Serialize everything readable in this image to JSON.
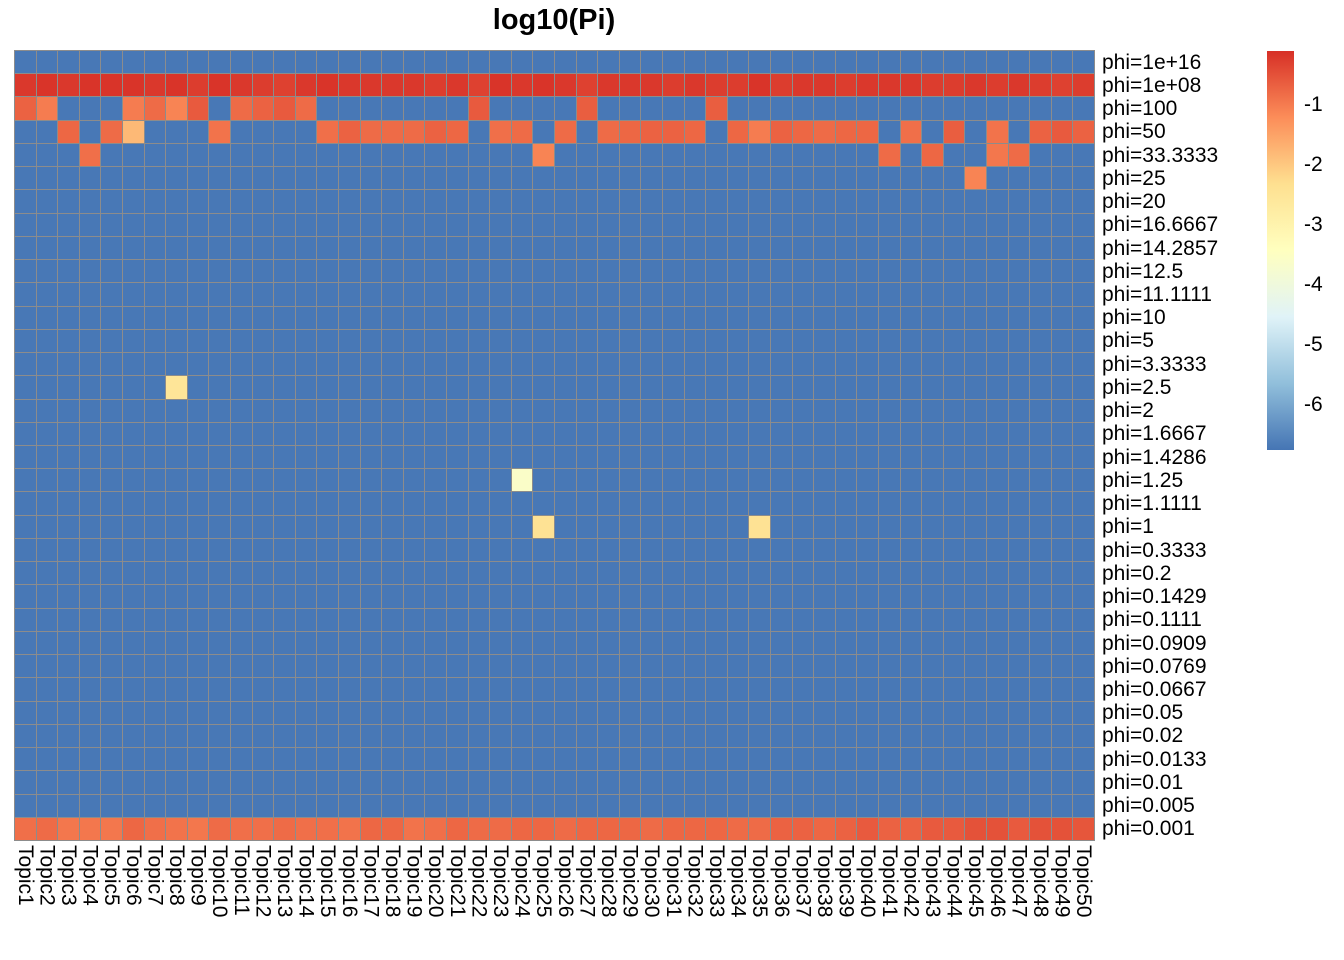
{
  "chart_data": {
    "type": "heatmap",
    "title": "log10(Pi)",
    "rows": [
      "phi=1e+16",
      "phi=1e+08",
      "phi=100",
      "phi=50",
      "phi=33.3333",
      "phi=25",
      "phi=20",
      "phi=16.6667",
      "phi=14.2857",
      "phi=12.5",
      "phi=11.1111",
      "phi=10",
      "phi=5",
      "phi=3.3333",
      "phi=2.5",
      "phi=2",
      "phi=1.6667",
      "phi=1.4286",
      "phi=1.25",
      "phi=1.1111",
      "phi=1",
      "phi=0.3333",
      "phi=0.2",
      "phi=0.1429",
      "phi=0.1111",
      "phi=0.0909",
      "phi=0.0769",
      "phi=0.0667",
      "phi=0.05",
      "phi=0.02",
      "phi=0.0133",
      "phi=0.01",
      "phi=0.005",
      "phi=0.001"
    ],
    "columns": [
      "Topic1",
      "Topic2",
      "Topic3",
      "Topic4",
      "Topic5",
      "Topic6",
      "Topic7",
      "Topic8",
      "Topic9",
      "Topic10",
      "Topic11",
      "Topic12",
      "Topic13",
      "Topic14",
      "Topic15",
      "Topic16",
      "Topic17",
      "Topic18",
      "Topic19",
      "Topic20",
      "Topic21",
      "Topic22",
      "Topic23",
      "Topic24",
      "Topic25",
      "Topic26",
      "Topic27",
      "Topic28",
      "Topic29",
      "Topic30",
      "Topic31",
      "Topic32",
      "Topic33",
      "Topic34",
      "Topic35",
      "Topic36",
      "Topic37",
      "Topic38",
      "Topic39",
      "Topic40",
      "Topic41",
      "Topic42",
      "Topic43",
      "Topic44",
      "Topic45",
      "Topic46",
      "Topic47",
      "Topic48",
      "Topic49",
      "Topic50"
    ],
    "baseline_value": -6.7,
    "full_rows": {
      "phi=1e+08": [
        -0.2,
        -0.15,
        -0.2,
        -0.15,
        -0.15,
        -0.15,
        -0.2,
        -0.15,
        -0.25,
        -0.15,
        -0.2,
        -0.25,
        -0.3,
        -0.2,
        -0.15,
        -0.2,
        -0.2,
        -0.2,
        -0.2,
        -0.25,
        -0.2,
        -0.3,
        -0.15,
        -0.2,
        -0.15,
        -0.2,
        -0.3,
        -0.2,
        -0.2,
        -0.2,
        -0.25,
        -0.2,
        -0.25,
        -0.25,
        -0.15,
        -0.25,
        -0.2,
        -0.2,
        -0.25,
        -0.2,
        -0.2,
        -0.2,
        -0.25,
        -0.25,
        -0.2,
        -0.25,
        -0.2,
        -0.25,
        -0.3,
        -0.25
      ],
      "phi=0.001": [
        -0.85,
        -0.8,
        -0.95,
        -0.95,
        -0.95,
        -0.75,
        -0.85,
        -0.9,
        -0.95,
        -0.8,
        -0.85,
        -0.85,
        -0.8,
        -0.85,
        -0.85,
        -0.9,
        -0.75,
        -0.75,
        -0.9,
        -0.85,
        -0.75,
        -0.8,
        -0.8,
        -0.75,
        -0.75,
        -0.8,
        -0.75,
        -0.75,
        -0.75,
        -0.8,
        -0.75,
        -0.75,
        -0.75,
        -0.8,
        -0.8,
        -0.7,
        -0.7,
        -0.75,
        -0.7,
        -0.6,
        -0.7,
        -0.7,
        -0.6,
        -0.6,
        -0.5,
        -0.5,
        -0.6,
        -0.5,
        -0.5,
        -0.55
      ]
    },
    "cells": [
      [
        "phi=100",
        "Topic1",
        -0.7
      ],
      [
        "phi=100",
        "Topic2",
        -1.0
      ],
      [
        "phi=100",
        "Topic6",
        -1.0
      ],
      [
        "phi=100",
        "Topic7",
        -0.8
      ],
      [
        "phi=100",
        "Topic8",
        -1.1
      ],
      [
        "phi=100",
        "Topic9",
        -0.6
      ],
      [
        "phi=100",
        "Topic11",
        -0.8
      ],
      [
        "phi=100",
        "Topic12",
        -0.7
      ],
      [
        "phi=100",
        "Topic13",
        -0.6
      ],
      [
        "phi=100",
        "Topic14",
        -0.8
      ],
      [
        "phi=100",
        "Topic22",
        -0.6
      ],
      [
        "phi=100",
        "Topic27",
        -0.65
      ],
      [
        "phi=100",
        "Topic33",
        -0.65
      ],
      [
        "phi=50",
        "Topic3",
        -0.75
      ],
      [
        "phi=50",
        "Topic5",
        -0.8
      ],
      [
        "phi=50",
        "Topic6",
        -1.8
      ],
      [
        "phi=50",
        "Topic10",
        -0.9
      ],
      [
        "phi=50",
        "Topic15",
        -0.85
      ],
      [
        "phi=50",
        "Topic16",
        -0.7
      ],
      [
        "phi=50",
        "Topic17",
        -0.8
      ],
      [
        "phi=50",
        "Topic18",
        -0.8
      ],
      [
        "phi=50",
        "Topic19",
        -0.8
      ],
      [
        "phi=50",
        "Topic20",
        -0.7
      ],
      [
        "phi=50",
        "Topic21",
        -0.75
      ],
      [
        "phi=50",
        "Topic23",
        -0.85
      ],
      [
        "phi=50",
        "Topic24",
        -0.8
      ],
      [
        "phi=50",
        "Topic26",
        -0.8
      ],
      [
        "phi=50",
        "Topic28",
        -0.8
      ],
      [
        "phi=50",
        "Topic29",
        -0.75
      ],
      [
        "phi=50",
        "Topic30",
        -0.7
      ],
      [
        "phi=50",
        "Topic31",
        -0.7
      ],
      [
        "phi=50",
        "Topic32",
        -0.75
      ],
      [
        "phi=50",
        "Topic34",
        -0.75
      ],
      [
        "phi=50",
        "Topic35",
        -1.0
      ],
      [
        "phi=50",
        "Topic36",
        -0.7
      ],
      [
        "phi=50",
        "Topic37",
        -0.75
      ],
      [
        "phi=50",
        "Topic38",
        -0.8
      ],
      [
        "phi=50",
        "Topic39",
        -0.75
      ],
      [
        "phi=50",
        "Topic40",
        -0.75
      ],
      [
        "phi=50",
        "Topic42",
        -0.85
      ],
      [
        "phi=50",
        "Topic44",
        -0.65
      ],
      [
        "phi=50",
        "Topic46",
        -0.9
      ],
      [
        "phi=50",
        "Topic48",
        -0.7
      ],
      [
        "phi=50",
        "Topic49",
        -0.6
      ],
      [
        "phi=50",
        "Topic50",
        -0.7
      ],
      [
        "phi=33.3333",
        "Topic4",
        -0.85
      ],
      [
        "phi=33.3333",
        "Topic25",
        -1.1
      ],
      [
        "phi=33.3333",
        "Topic41",
        -0.8
      ],
      [
        "phi=33.3333",
        "Topic43",
        -0.75
      ],
      [
        "phi=33.3333",
        "Topic46",
        -0.95
      ],
      [
        "phi=33.3333",
        "Topic47",
        -0.8
      ],
      [
        "phi=25",
        "Topic45",
        -1.1
      ],
      [
        "phi=2.5",
        "Topic8",
        -2.5
      ],
      [
        "phi=1.25",
        "Topic24",
        -3.6
      ],
      [
        "phi=1",
        "Topic25",
        -2.4
      ],
      [
        "phi=1",
        "Topic35",
        -2.4
      ]
    ],
    "colorbar": {
      "min": -6.75,
      "max": -0.1,
      "ticks": [
        "-1",
        "-2",
        "-3",
        "-4",
        "-5",
        "-6"
      ],
      "tick_values": [
        -1,
        -2,
        -3,
        -4,
        -5,
        -6
      ],
      "colors": [
        "#4575B4",
        "#91BFDB",
        "#E0F3F8",
        "#FFFFBF",
        "#FEE090",
        "#FC8D59",
        "#D73027"
      ]
    }
  }
}
